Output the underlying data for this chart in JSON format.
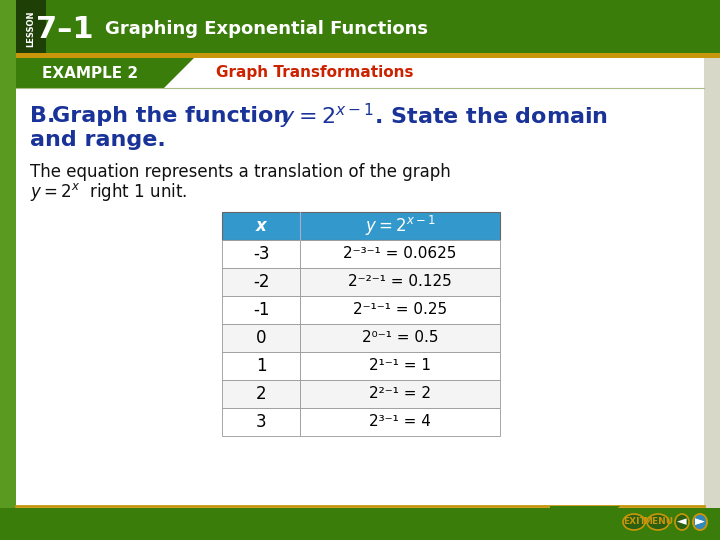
{
  "title_lesson": "7–1",
  "title_main": "Graphing Exponential Functions",
  "example_label": "EXAMPLE 2",
  "example_title": "Graph Transformations",
  "heading_color": "#1a3399",
  "body_color": "#111111",
  "table_header_bg": "#3399cc",
  "table_header_fg": "#ffffff",
  "table_border": "#999999",
  "header_green": "#3a7d0a",
  "header_dark_green": "#2a5c08",
  "lesson_dark": "#1e4006",
  "gold_bar": "#c8960a",
  "example_green": "#3a7d0a",
  "example_red": "#cc2200",
  "content_bg": "#ffffff",
  "slide_bg": "#d8d8c8",
  "left_side_green": "#5a9a20",
  "table_rows": [
    [
      "-3",
      "2⁻³⁻¹ = 0.0625"
    ],
    [
      "-2",
      "2⁻²⁻¹ = 0.125"
    ],
    [
      "-1",
      "2⁻¹⁻¹ = 0.25"
    ],
    [
      "0",
      "2⁰⁻¹ = 0.5"
    ],
    [
      "1",
      "2¹⁻¹ = 1"
    ],
    [
      "2",
      "2²⁻¹ = 2"
    ],
    [
      "3",
      "2³⁻¹ = 4"
    ]
  ]
}
